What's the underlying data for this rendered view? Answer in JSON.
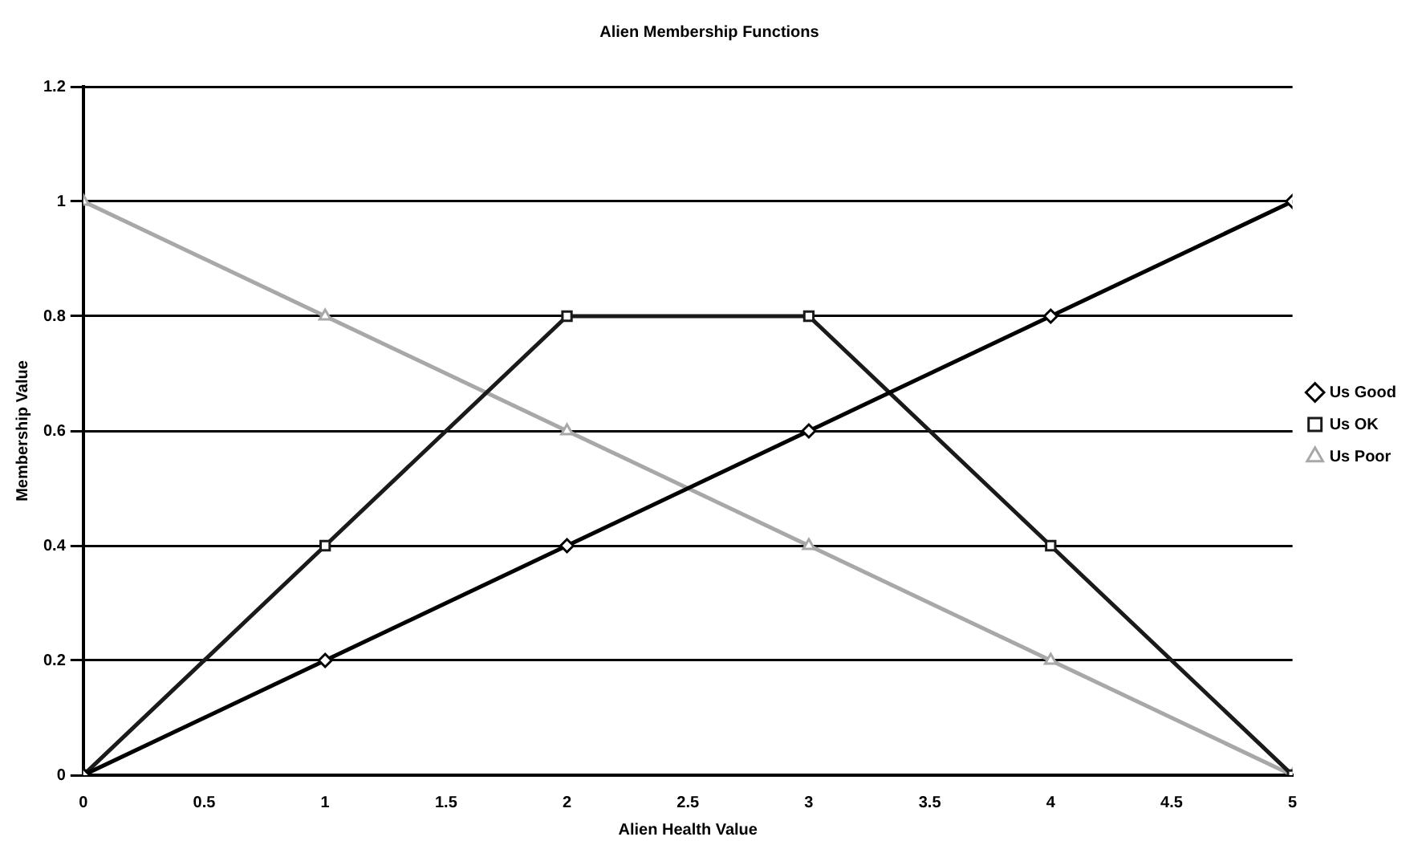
{
  "chart_data": {
    "type": "line",
    "title": "Alien Membership Functions",
    "xlabel": "Alien Health Value",
    "ylabel": "Membership Value",
    "x": [
      0,
      1,
      2,
      3,
      4,
      5
    ],
    "series": [
      {
        "name": "Us Good",
        "color": "#000000",
        "marker": "diamond",
        "values": [
          0,
          0.2,
          0.4,
          0.6,
          0.8,
          1
        ]
      },
      {
        "name": "Us OK",
        "color": "#1a1a1a",
        "marker": "square",
        "values": [
          0,
          0.4,
          0.8,
          0.8,
          0.4,
          0
        ]
      },
      {
        "name": "Us Poor",
        "color": "#a8a8a8",
        "marker": "triangle",
        "values": [
          1,
          0.8,
          0.6,
          0.4,
          0.2,
          0
        ]
      }
    ],
    "xlim": [
      0,
      5
    ],
    "xticks": [
      0,
      0.5,
      1,
      1.5,
      2,
      2.5,
      3,
      3.5,
      4,
      4.5,
      5
    ],
    "ylim": [
      0,
      1.2
    ],
    "yticks": [
      0,
      0.2,
      0.4,
      0.6,
      0.8,
      1,
      1.2
    ],
    "grid": "y",
    "legend": "right"
  }
}
